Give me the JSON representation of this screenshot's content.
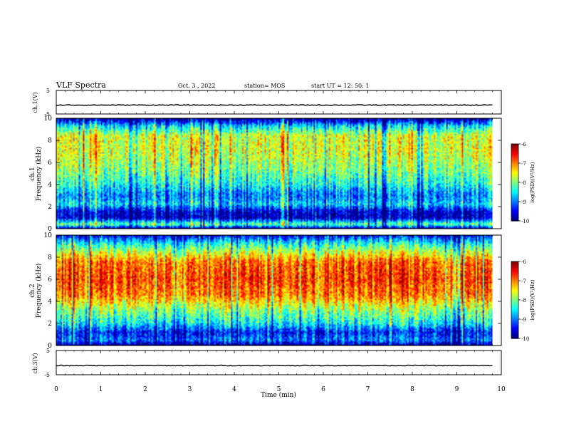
{
  "header": {
    "title": "VLF Spectra",
    "date": "Oct. 3 , 2022",
    "station": "station= MOS",
    "start_ut": "start UT = 12: 50: 1"
  },
  "axes": {
    "ch1_voltage_label": "ch.1(V)",
    "ch3_voltage_label": "ch.3(V)",
    "spec1_label": "ch.1",
    "spec2_label": "ch.2",
    "freq_label": "Frequency (kHz)",
    "time_label": "Time (min)",
    "colorbar_label": "log(PSD)(V²/Hz)"
  },
  "chart_data": [
    {
      "type": "line",
      "title": "ch.1(V)",
      "xlim": [
        0,
        10
      ],
      "ylim": [
        -5,
        5
      ],
      "yticks": [
        "5",
        "-5"
      ],
      "description_values": {
        "baseline_v": -1.2,
        "duration_min": 9.8
      }
    },
    {
      "type": "heatmap",
      "title": "ch.1",
      "xlabel": "Time (min)",
      "ylabel": "Frequency (kHz)",
      "xlim": [
        0,
        10
      ],
      "ylim": [
        0,
        10
      ],
      "yticks": [
        "0",
        "2",
        "4",
        "6",
        "8",
        "10"
      ],
      "colorbar": {
        "label": "log(PSD)(V²/Hz)",
        "range": [
          -10,
          -6
        ],
        "ticks": [
          "-6",
          "-7",
          "-8",
          "-9",
          "-10"
        ]
      },
      "band_profile": [
        {
          "f": 0.0,
          "level": -10.0
        },
        {
          "f": 0.4,
          "level": -8.0
        },
        {
          "f": 1.0,
          "level": -9.8
        },
        {
          "f": 1.6,
          "level": -9.6
        },
        {
          "f": 2.2,
          "level": -8.6
        },
        {
          "f": 3.0,
          "level": -9.0
        },
        {
          "f": 4.0,
          "level": -8.4
        },
        {
          "f": 5.5,
          "level": -7.9
        },
        {
          "f": 7.0,
          "level": -7.6
        },
        {
          "f": 8.4,
          "level": -7.6
        },
        {
          "f": 9.3,
          "level": -8.6
        },
        {
          "f": 10.0,
          "level": -10.0
        }
      ]
    },
    {
      "type": "heatmap",
      "title": "ch.2",
      "xlabel": "Time (min)",
      "ylabel": "Frequency (kHz)",
      "xlim": [
        0,
        10
      ],
      "ylim": [
        0,
        10
      ],
      "yticks": [
        "0",
        "2",
        "4",
        "6",
        "8",
        "10"
      ],
      "colorbar": {
        "label": "log(PSD)(V²/Hz)",
        "range": [
          -10,
          -6
        ],
        "ticks": [
          "-6",
          "-7",
          "-8",
          "-9",
          "-10"
        ]
      },
      "band_profile": [
        {
          "f": 0.0,
          "level": -10.0
        },
        {
          "f": 0.5,
          "level": -9.0
        },
        {
          "f": 1.2,
          "level": -9.4
        },
        {
          "f": 2.0,
          "level": -8.5
        },
        {
          "f": 3.2,
          "level": -7.9
        },
        {
          "f": 4.5,
          "level": -7.0
        },
        {
          "f": 6.0,
          "level": -6.7
        },
        {
          "f": 7.6,
          "level": -6.9
        },
        {
          "f": 8.6,
          "level": -7.8
        },
        {
          "f": 9.4,
          "level": -8.6
        },
        {
          "f": 10.0,
          "level": -9.6
        }
      ]
    },
    {
      "type": "line",
      "title": "ch.3(V)",
      "xlabel": "Time (min)",
      "xlim": [
        0,
        10
      ],
      "ylim": [
        -5,
        5
      ],
      "xticks": [
        "0",
        "1",
        "2",
        "3",
        "4",
        "5",
        "6",
        "7",
        "8",
        "9",
        "10"
      ],
      "yticks": [
        "5",
        "-5"
      ],
      "description_values": {
        "baseline_v": -1.2,
        "duration_min": 9.8
      }
    }
  ]
}
